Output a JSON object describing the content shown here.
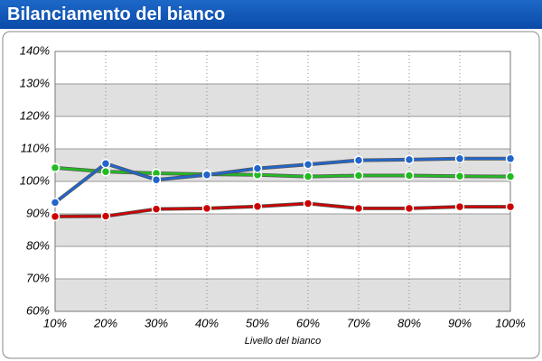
{
  "header": {
    "title": "Bilanciamento del bianco"
  },
  "chart_data": {
    "type": "line",
    "x_label": "Livello del bianco",
    "categories": [
      "10%",
      "20%",
      "30%",
      "40%",
      "50%",
      "60%",
      "70%",
      "80%",
      "90%",
      "100%"
    ],
    "series": [
      {
        "color": "#cc0000",
        "values": [
          89.2,
          89.3,
          91.5,
          91.7,
          92.3,
          93.2,
          91.7,
          91.7,
          92.2,
          92.2
        ]
      },
      {
        "color": "#22bb22",
        "values": [
          104.2,
          103,
          102.5,
          102.2,
          102,
          101.5,
          101.8,
          101.8,
          101.6,
          101.5
        ]
      },
      {
        "color": "#2266cc",
        "values": [
          93.5,
          105.5,
          100.5,
          102,
          104,
          105.2,
          106.5,
          106.7,
          107,
          107
        ]
      }
    ],
    "ylim": [
      60,
      140
    ],
    "yticks": [
      {
        "value": 60,
        "label": "60%"
      },
      {
        "value": 70,
        "label": "70%"
      },
      {
        "value": 80,
        "label": "80%"
      },
      {
        "value": 90,
        "label": "90%"
      },
      {
        "value": 100,
        "label": "100%"
      },
      {
        "value": 110,
        "label": "110%"
      },
      {
        "value": 120,
        "label": "120%"
      },
      {
        "value": 130,
        "label": "130%"
      },
      {
        "value": 140,
        "label": "140%"
      }
    ],
    "grid": true
  }
}
